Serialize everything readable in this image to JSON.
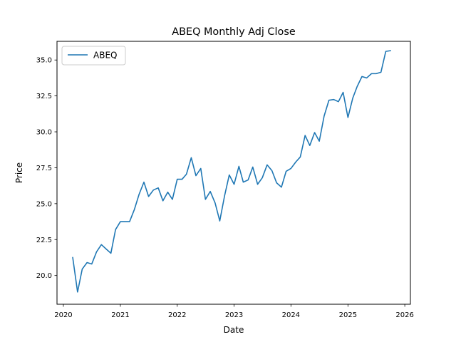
{
  "chart_data": {
    "type": "line",
    "title": "ABEQ Monthly Adj Close",
    "xlabel": "Date",
    "ylabel": "Price",
    "xlim": [
      "2019-11-21",
      "2026-02-06"
    ],
    "ylim": [
      18.0,
      36.3
    ],
    "x_ticks": [
      "2020",
      "2021",
      "2022",
      "2023",
      "2024",
      "2025",
      "2026"
    ],
    "y_ticks": [
      "20.0",
      "22.5",
      "25.0",
      "27.5",
      "30.0",
      "32.5",
      "35.0"
    ],
    "grid": false,
    "legend": "top-left",
    "series": [
      {
        "name": "ABEQ",
        "color": "#1f77b4",
        "x": [
          "2020-03",
          "2020-04",
          "2020-05",
          "2020-06",
          "2020-07",
          "2020-08",
          "2020-09",
          "2020-10",
          "2020-11",
          "2020-12",
          "2021-01",
          "2021-02",
          "2021-03",
          "2021-04",
          "2021-05",
          "2021-06",
          "2021-07",
          "2021-08",
          "2021-09",
          "2021-10",
          "2021-11",
          "2021-12",
          "2022-01",
          "2022-02",
          "2022-03",
          "2022-04",
          "2022-05",
          "2022-06",
          "2022-07",
          "2022-08",
          "2022-09",
          "2022-10",
          "2022-11",
          "2022-12",
          "2023-01",
          "2023-02",
          "2023-03",
          "2023-04",
          "2023-05",
          "2023-06",
          "2023-07",
          "2023-08",
          "2023-09",
          "2023-10",
          "2023-11",
          "2023-12",
          "2024-01",
          "2024-02",
          "2024-03",
          "2024-04",
          "2024-05",
          "2024-06",
          "2024-07",
          "2024-08",
          "2024-09",
          "2024-10",
          "2024-11",
          "2024-12",
          "2025-01",
          "2025-02",
          "2025-03",
          "2025-04",
          "2025-05",
          "2025-06",
          "2025-07",
          "2025-08",
          "2025-09",
          "2025-10"
        ],
        "values": [
          21.25,
          18.85,
          20.45,
          20.9,
          20.8,
          21.65,
          22.15,
          21.85,
          21.55,
          23.2,
          23.75,
          23.75,
          23.75,
          24.6,
          25.65,
          26.5,
          25.5,
          25.95,
          26.1,
          25.2,
          25.8,
          25.3,
          26.7,
          26.7,
          27.05,
          28.2,
          26.95,
          27.45,
          25.3,
          25.85,
          25.05,
          23.8,
          25.55,
          27.0,
          26.35,
          27.6,
          26.5,
          26.65,
          27.55,
          26.35,
          26.8,
          27.7,
          27.3,
          26.45,
          26.15,
          27.25,
          27.45,
          27.9,
          28.25,
          29.75,
          29.05,
          29.95,
          29.35,
          31.1,
          32.2,
          32.25,
          32.1,
          32.75,
          31.0,
          32.35,
          33.15,
          33.85,
          33.75,
          34.05,
          34.05,
          34.15,
          35.6,
          35.65
        ]
      }
    ]
  }
}
